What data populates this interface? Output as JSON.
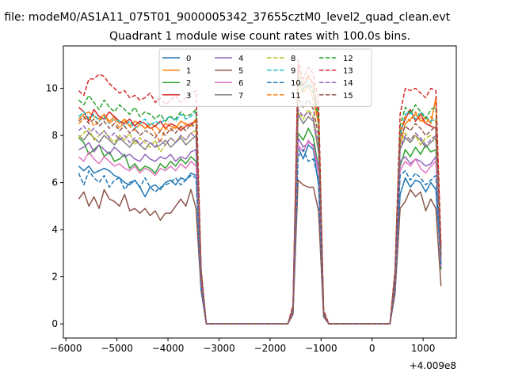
{
  "figure": {
    "suptitle": "n file: modeM0/AS1A11_075T01_9000005342_37655cztM0_level2_quad_clean.evt",
    "title": "Quadrant 1 module wise count rates with 100.0s bins.",
    "x_offset_label": "+4.009e8"
  },
  "chart_data": {
    "type": "line",
    "title": "Quadrant 1 module wise count rates with 100.0s bins.",
    "xlabel": "",
    "ylabel": "",
    "x_offset": 400900000,
    "xlim": [
      -6050,
      1650
    ],
    "ylim": [
      -0.6,
      11.8
    ],
    "xticks": [
      -6000,
      -5000,
      -4000,
      -3000,
      -2000,
      -1000,
      0,
      1000
    ],
    "yticks": [
      0,
      2,
      4,
      6,
      8,
      10
    ],
    "grid": false,
    "legend": {
      "placement": "top-center",
      "columns": 4
    },
    "x": [
      -5750,
      -5650,
      -5550,
      -5450,
      -5350,
      -5250,
      -5150,
      -5050,
      -4950,
      -4850,
      -4750,
      -4650,
      -4550,
      -4450,
      -4350,
      -4250,
      -4150,
      -4050,
      -3950,
      -3850,
      -3750,
      -3650,
      -3550,
      -3450,
      -3350,
      -3250,
      -3150,
      -3050,
      -2950,
      -2850,
      -2750,
      -2650,
      -2550,
      -2450,
      -2350,
      -2250,
      -2150,
      -2050,
      -1950,
      -1850,
      -1750,
      -1650,
      -1550,
      -1450,
      -1350,
      -1250,
      -1150,
      -1050,
      -950,
      -850,
      -750,
      -650,
      -550,
      -450,
      -350,
      -250,
      -150,
      -50,
      50,
      150,
      250,
      350,
      450,
      550,
      650,
      750,
      850,
      950,
      1050,
      1150,
      1250,
      1350
    ],
    "series": [
      {
        "name": "0",
        "color": "#1f77b4",
        "dash": "solid",
        "values": [
          6.7,
          6.5,
          6.7,
          6.4,
          6.5,
          6.6,
          6.5,
          6.3,
          6.2,
          6.0,
          5.9,
          6.1,
          5.8,
          5.4,
          5.8,
          5.9,
          5.7,
          6.0,
          6.1,
          5.9,
          6.2,
          6.1,
          6.4,
          6.3,
          1.5,
          0,
          0,
          0,
          0,
          0,
          0,
          0,
          0,
          0,
          0,
          0,
          0,
          0,
          0,
          0,
          0,
          0,
          0.5,
          7.5,
          7.0,
          7.6,
          7.4,
          5.9,
          0.4,
          0,
          0,
          0,
          0,
          0,
          0,
          0,
          0,
          0,
          0,
          0,
          0,
          0,
          1.5,
          5.5,
          6.2,
          5.8,
          6.1,
          6.0,
          5.6,
          6.0,
          5.7,
          2.6
        ]
      },
      {
        "name": "1",
        "color": "#ff7f0e",
        "dash": "solid",
        "values": [
          8.7,
          8.9,
          9.0,
          8.8,
          8.7,
          8.9,
          8.6,
          8.8,
          8.5,
          8.7,
          8.4,
          8.6,
          8.5,
          8.3,
          8.5,
          8.4,
          8.2,
          8.5,
          8.4,
          8.3,
          8.6,
          8.5,
          8.4,
          8.7,
          2.1,
          0,
          0,
          0,
          0,
          0,
          0,
          0,
          0,
          0,
          0,
          0,
          0,
          0,
          0,
          0,
          0,
          0,
          0.6,
          10.3,
          9.8,
          10.1,
          9.5,
          8.5,
          0.5,
          0,
          0,
          0,
          0,
          0,
          0,
          0,
          0,
          0,
          0,
          0,
          0,
          0,
          2.0,
          7.6,
          8.5,
          8.7,
          8.9,
          8.6,
          8.8,
          8.5,
          9.6,
          2.9
        ]
      },
      {
        "name": "2",
        "color": "#2ca02c",
        "dash": "solid",
        "values": [
          7.9,
          7.7,
          7.2,
          7.4,
          7.6,
          7.1,
          7.3,
          6.9,
          7.0,
          7.2,
          6.6,
          6.8,
          6.5,
          6.7,
          6.6,
          6.4,
          6.8,
          6.6,
          6.9,
          6.7,
          7.0,
          6.8,
          7.1,
          6.9,
          1.7,
          0,
          0,
          0,
          0,
          0,
          0,
          0,
          0,
          0,
          0,
          0,
          0,
          0,
          0,
          0,
          0,
          0,
          0.5,
          8.1,
          7.8,
          8.3,
          7.9,
          6.6,
          0.4,
          0,
          0,
          0,
          0,
          0,
          0,
          0,
          0,
          0,
          0,
          0,
          0,
          0,
          1.7,
          6.7,
          7.4,
          7.1,
          7.5,
          7.2,
          7.6,
          7.3,
          7.4,
          2.3
        ]
      },
      {
        "name": "3",
        "color": "#d62728",
        "dash": "solid",
        "values": [
          9.2,
          9.0,
          8.6,
          9.1,
          8.8,
          8.7,
          9.0,
          8.8,
          8.6,
          8.5,
          8.7,
          8.4,
          8.6,
          8.5,
          8.3,
          8.4,
          8.6,
          8.3,
          8.5,
          8.4,
          8.2,
          8.4,
          8.5,
          8.6,
          2.2,
          0,
          0,
          0,
          0,
          0,
          0,
          0,
          0,
          0,
          0,
          0,
          0,
          0,
          0,
          0,
          0,
          0,
          0.7,
          10.9,
          10.1,
          10.5,
          10.2,
          8.8,
          0.5,
          0,
          0,
          0,
          0,
          0,
          0,
          0,
          0,
          0,
          0,
          0,
          0,
          0,
          2.2,
          8.1,
          8.7,
          9.1,
          8.6,
          8.9,
          8.5,
          8.4,
          8.3,
          3.3
        ]
      },
      {
        "name": "4",
        "color": "#9467bd",
        "dash": "solid",
        "values": [
          7.4,
          7.5,
          7.7,
          7.3,
          7.6,
          7.4,
          7.2,
          7.5,
          7.3,
          7.1,
          7.2,
          7.0,
          6.9,
          7.2,
          7.0,
          6.9,
          7.1,
          7.0,
          7.2,
          6.9,
          7.1,
          7.0,
          7.3,
          7.4,
          1.8,
          0,
          0,
          0,
          0,
          0,
          0,
          0,
          0,
          0,
          0,
          0,
          0,
          0,
          0,
          0,
          0,
          0,
          0.5,
          7.9,
          7.5,
          7.7,
          7.6,
          6.6,
          0.4,
          0,
          0,
          0,
          0,
          0,
          0,
          0,
          0,
          0,
          0,
          0,
          0,
          0,
          1.8,
          6.9,
          7.1,
          6.8,
          7.0,
          6.9,
          6.7,
          6.8,
          7.1,
          2.5
        ]
      },
      {
        "name": "5",
        "color": "#8c564b",
        "dash": "solid",
        "values": [
          5.3,
          5.6,
          5.0,
          5.4,
          4.9,
          5.7,
          5.3,
          5.2,
          5.0,
          5.5,
          4.8,
          4.9,
          4.7,
          4.9,
          4.6,
          4.8,
          4.4,
          4.7,
          4.7,
          5.0,
          5.3,
          5.0,
          5.7,
          4.9,
          1.4,
          0,
          0,
          0,
          0,
          0,
          0,
          0,
          0,
          0,
          0,
          0,
          0,
          0,
          0,
          0,
          0,
          0,
          0.4,
          6.1,
          5.9,
          5.8,
          5.8,
          4.8,
          0.3,
          0,
          0,
          0,
          0,
          0,
          0,
          0,
          0,
          0,
          0,
          0,
          0,
          0,
          1.3,
          4.9,
          5.2,
          5.7,
          5.4,
          5.6,
          4.8,
          5.3,
          4.9,
          1.6
        ]
      },
      {
        "name": "6",
        "color": "#e377c2",
        "dash": "solid",
        "values": [
          7.1,
          6.9,
          7.3,
          7.0,
          6.8,
          7.1,
          6.9,
          6.7,
          6.8,
          6.6,
          6.5,
          6.7,
          6.4,
          6.6,
          6.5,
          6.3,
          6.6,
          6.5,
          6.7,
          6.5,
          6.8,
          6.6,
          6.9,
          6.7,
          1.7,
          0,
          0,
          0,
          0,
          0,
          0,
          0,
          0,
          0,
          0,
          0,
          0,
          0,
          0,
          0,
          0,
          0,
          0.5,
          7.6,
          7.3,
          7.8,
          7.5,
          6.4,
          0.4,
          0,
          0,
          0,
          0,
          0,
          0,
          0,
          0,
          0,
          0,
          0,
          0,
          0,
          1.7,
          6.5,
          6.9,
          6.7,
          7.0,
          6.6,
          6.4,
          6.7,
          6.9,
          2.4
        ]
      },
      {
        "name": "7",
        "color": "#7f7f7f",
        "dash": "solid",
        "values": [
          8.0,
          7.8,
          8.1,
          7.9,
          7.7,
          8.0,
          7.8,
          7.6,
          7.9,
          7.7,
          7.5,
          7.8,
          7.6,
          7.4,
          7.7,
          7.5,
          7.6,
          7.8,
          7.5,
          7.7,
          7.9,
          7.6,
          7.8,
          8.0,
          1.9,
          0,
          0,
          0,
          0,
          0,
          0,
          0,
          0,
          0,
          0,
          0,
          0,
          0,
          0,
          0,
          0,
          0,
          0.6,
          8.9,
          8.5,
          8.8,
          8.6,
          7.3,
          0.4,
          0,
          0,
          0,
          0,
          0,
          0,
          0,
          0,
          0,
          0,
          0,
          0,
          0,
          1.9,
          7.4,
          7.9,
          7.7,
          8.0,
          7.8,
          7.5,
          7.7,
          7.9,
          2.6
        ]
      },
      {
        "name": "8",
        "color": "#bcbd22",
        "dash": "dashed",
        "values": [
          7.9,
          8.1,
          8.3,
          7.8,
          8.0,
          8.2,
          7.9,
          7.7,
          8.0,
          7.8,
          8.1,
          7.6,
          7.9,
          7.7,
          7.5,
          7.8,
          7.3,
          7.6,
          7.9,
          7.7,
          8.0,
          7.8,
          8.1,
          8.2,
          2.0,
          0,
          0,
          0,
          0,
          0,
          0,
          0,
          0,
          0,
          0,
          0,
          0,
          0,
          0,
          0,
          0,
          0,
          0.6,
          9.0,
          8.7,
          9.1,
          8.8,
          7.5,
          0.5,
          0,
          0,
          0,
          0,
          0,
          0,
          0,
          0,
          0,
          0,
          0,
          0,
          0,
          2.0,
          7.7,
          8.1,
          7.8,
          8.0,
          7.6,
          7.9,
          8.0,
          7.8,
          2.7
        ]
      },
      {
        "name": "9",
        "color": "#17becf",
        "dash": "dashed",
        "values": [
          8.8,
          9.0,
          8.7,
          8.9,
          8.6,
          8.8,
          8.5,
          8.7,
          8.6,
          8.4,
          8.6,
          8.3,
          8.5,
          8.7,
          8.4,
          8.6,
          8.5,
          8.7,
          8.8,
          8.6,
          8.9,
          8.7,
          8.8,
          9.0,
          2.2,
          0,
          0,
          0,
          0,
          0,
          0,
          0,
          0,
          0,
          0,
          0,
          0,
          0,
          0,
          0,
          0,
          0,
          0.7,
          10.5,
          10.0,
          10.3,
          9.9,
          8.6,
          0.5,
          0,
          0,
          0,
          0,
          0,
          0,
          0,
          0,
          0,
          0,
          0,
          0,
          0,
          2.1,
          8.0,
          8.9,
          9.0,
          8.7,
          9.0,
          8.8,
          8.6,
          8.7,
          3.0
        ]
      },
      {
        "name": "10",
        "color": "#1f77b4",
        "dash": "dashed",
        "values": [
          6.4,
          5.9,
          6.5,
          6.2,
          6.0,
          6.3,
          5.8,
          6.1,
          6.2,
          5.7,
          6.0,
          6.1,
          5.8,
          6.2,
          5.8,
          5.6,
          5.8,
          5.9,
          6.0,
          6.2,
          5.9,
          6.1,
          6.3,
          6.2,
          1.5,
          0,
          0,
          0,
          0,
          0,
          0,
          0,
          0,
          0,
          0,
          0,
          0,
          0,
          0,
          0,
          0,
          0,
          0.5,
          7.1,
          7.4,
          6.9,
          7.0,
          6.1,
          0.4,
          0,
          0,
          0,
          0,
          0,
          0,
          0,
          0,
          0,
          0,
          0,
          0,
          0,
          1.6,
          6.3,
          6.5,
          6.1,
          6.4,
          6.2,
          5.9,
          6.1,
          6.3,
          2.4
        ]
      },
      {
        "name": "11",
        "color": "#ff7f0e",
        "dash": "dashed",
        "values": [
          8.5,
          8.7,
          8.8,
          8.4,
          8.6,
          8.9,
          8.5,
          8.7,
          8.3,
          8.6,
          8.4,
          8.2,
          8.5,
          8.3,
          8.4,
          8.1,
          7.7,
          8.3,
          8.2,
          8.4,
          8.3,
          8.5,
          8.4,
          8.6,
          2.1,
          0,
          0,
          0,
          0,
          0,
          0,
          0,
          0,
          0,
          0,
          0,
          0,
          0,
          0,
          0,
          0,
          0,
          0.6,
          10.7,
          10.2,
          10.6,
          10.0,
          8.4,
          0.5,
          0,
          0,
          0,
          0,
          0,
          0,
          0,
          0,
          0,
          0,
          0,
          0,
          0,
          2.1,
          8.2,
          8.8,
          8.6,
          9.0,
          8.7,
          8.5,
          8.8,
          8.6,
          3.1
        ]
      },
      {
        "name": "12",
        "color": "#2ca02c",
        "dash": "dashed",
        "values": [
          9.5,
          9.3,
          9.7,
          9.4,
          9.1,
          9.5,
          9.2,
          9.0,
          9.3,
          9.1,
          8.9,
          9.2,
          8.8,
          9.0,
          8.9,
          8.7,
          8.9,
          8.6,
          8.8,
          8.7,
          9.0,
          8.8,
          8.9,
          9.1,
          2.3,
          0,
          0,
          0,
          0,
          0,
          0,
          0,
          0,
          0,
          0,
          0,
          0,
          0,
          0,
          0,
          0,
          0,
          0.7,
          10.4,
          9.9,
          10.2,
          9.8,
          8.9,
          0.5,
          0,
          0,
          0,
          0,
          0,
          0,
          0,
          0,
          0,
          0,
          0,
          0,
          0,
          2.2,
          8.4,
          9.2,
          8.9,
          9.3,
          9.0,
          8.7,
          9.1,
          9.2,
          3.2
        ]
      },
      {
        "name": "13",
        "color": "#d62728",
        "dash": "dashed",
        "values": [
          9.9,
          9.7,
          10.4,
          10.4,
          10.6,
          10.5,
          10.2,
          10.0,
          9.8,
          9.9,
          9.6,
          9.7,
          9.5,
          9.6,
          9.8,
          9.4,
          9.6,
          9.3,
          9.5,
          9.7,
          9.4,
          9.6,
          9.8,
          9.9,
          2.3,
          0,
          0,
          0,
          0,
          0,
          0,
          0,
          0,
          0,
          0,
          0,
          0,
          0,
          0,
          0,
          0,
          0,
          0.8,
          11.2,
          10.4,
          10.9,
          10.6,
          9.5,
          0.6,
          0,
          0,
          0,
          0,
          0,
          0,
          0,
          0,
          0,
          0,
          0,
          0,
          0,
          2.3,
          8.9,
          10.0,
          9.9,
          10.0,
          9.8,
          9.6,
          10.0,
          9.9,
          3.3
        ]
      },
      {
        "name": "14",
        "color": "#9467bd",
        "dash": "dashed",
        "values": [
          8.2,
          8.4,
          8.1,
          8.3,
          8.0,
          8.2,
          7.9,
          8.1,
          7.8,
          8.0,
          7.7,
          7.9,
          7.6,
          7.8,
          7.7,
          7.5,
          7.8,
          7.6,
          7.9,
          7.7,
          8.0,
          7.8,
          8.1,
          7.9,
          1.9,
          0,
          0,
          0,
          0,
          0,
          0,
          0,
          0,
          0,
          0,
          0,
          0,
          0,
          0,
          0,
          0,
          0,
          0.6,
          9.1,
          8.8,
          9.0,
          8.7,
          7.6,
          0.4,
          0,
          0,
          0,
          0,
          0,
          0,
          0,
          0,
          0,
          0,
          0,
          0,
          0,
          1.9,
          7.5,
          8.0,
          7.8,
          8.1,
          7.9,
          7.6,
          7.8,
          8.0,
          2.7
        ]
      },
      {
        "name": "15",
        "color": "#8c564b",
        "dash": "dashed",
        "values": [
          8.6,
          8.8,
          8.5,
          8.7,
          8.4,
          8.6,
          8.3,
          8.5,
          8.2,
          8.4,
          8.1,
          8.3,
          8.0,
          8.2,
          8.1,
          7.9,
          8.2,
          8.0,
          8.3,
          8.1,
          8.4,
          8.2,
          8.5,
          8.3,
          2.0,
          0,
          0,
          0,
          0,
          0,
          0,
          0,
          0,
          0,
          0,
          0,
          0,
          0,
          0,
          0,
          0,
          0,
          0.6,
          9.6,
          9.2,
          9.5,
          9.1,
          8.0,
          0.5,
          0,
          0,
          0,
          0,
          0,
          0,
          0,
          0,
          0,
          0,
          0,
          0,
          0,
          2.0,
          7.9,
          8.4,
          8.2,
          8.5,
          8.3,
          8.0,
          8.2,
          8.4,
          2.8
        ]
      }
    ]
  }
}
